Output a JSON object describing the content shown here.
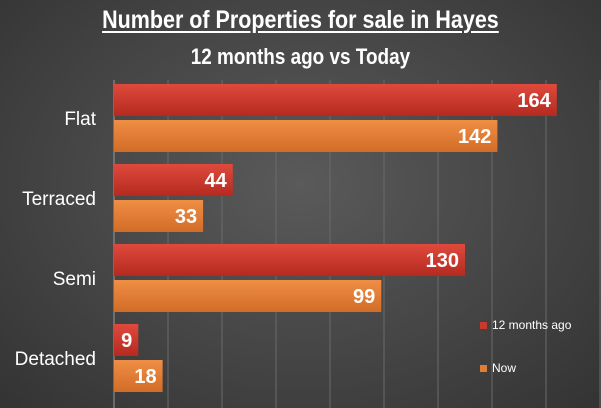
{
  "title": "Number of Properties for sale in Hayes",
  "subtitle": "12 months ago vs Today",
  "chart_data": {
    "type": "bar",
    "orientation": "horizontal",
    "categories": [
      "Flat",
      "Terraced",
      "Semi",
      "Detached"
    ],
    "series": [
      {
        "name": "12 months ago",
        "values": [
          164,
          44,
          130,
          9
        ],
        "color": "#c83a2e"
      },
      {
        "name": "Now",
        "values": [
          142,
          33,
          99,
          18
        ],
        "color": "#e07d35"
      }
    ],
    "xlim": [
      0,
      180
    ],
    "grid": true,
    "legend_position": "right"
  }
}
